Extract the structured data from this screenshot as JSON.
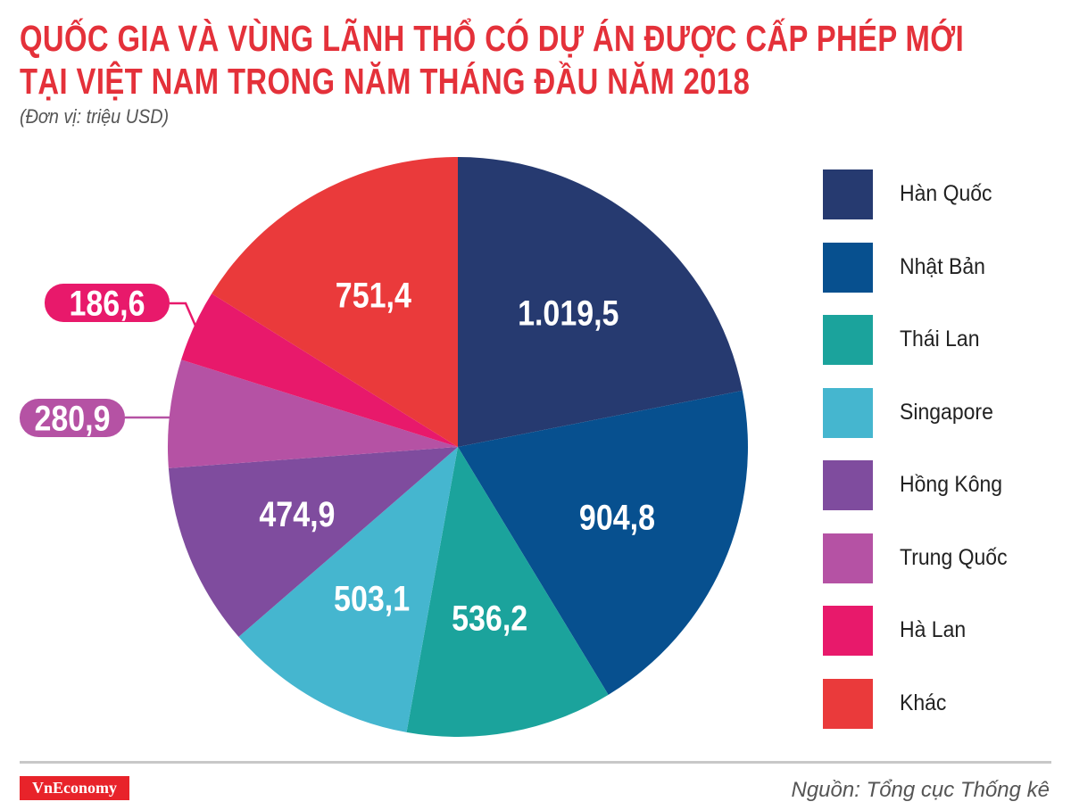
{
  "title_line1": "QUỐC GIA VÀ VÙNG LÃNH THỔ CÓ DỰ ÁN ĐƯỢC CẤP PHÉP MỚI",
  "title_line2": "TẠI VIỆT NAM TRONG NĂM THÁNG ĐẦU NĂM 2018",
  "unit": "(Đơn vị: triệu USD)",
  "source": "Nguồn: Tổng cục Thống kê",
  "logo": "VnEconomy",
  "chart_data": {
    "type": "pie",
    "title": "QUỐC GIA VÀ VÙNG LÃNH THỔ CÓ DỰ ÁN ĐƯỢC CẤP PHÉP MỚI TẠI VIỆT NAM TRONG NĂM THÁNG ĐẦU NĂM 2018",
    "unit": "(Đơn vị: triệu USD)",
    "legend_position": "right",
    "start": "top, clockwise",
    "categories": [
      "Hàn Quốc",
      "Nhật Bản",
      "Thái Lan",
      "Singapore",
      "Hồng Kông",
      "Trung Quốc",
      "Hà Lan",
      "Khác"
    ],
    "values": [
      1019.5,
      904.8,
      536.2,
      503.1,
      474.9,
      280.9,
      186.6,
      751.4
    ],
    "labels": [
      "1.019,5",
      "904,8",
      "536,2",
      "503,1",
      "474,9",
      "280,9",
      "186,6",
      "751,4"
    ],
    "colors": [
      "#263a70",
      "#07508f",
      "#1ba39c",
      "#45b6cf",
      "#7f4c9e",
      "#b552a4",
      "#e8196b",
      "#ea3a3b"
    ]
  }
}
